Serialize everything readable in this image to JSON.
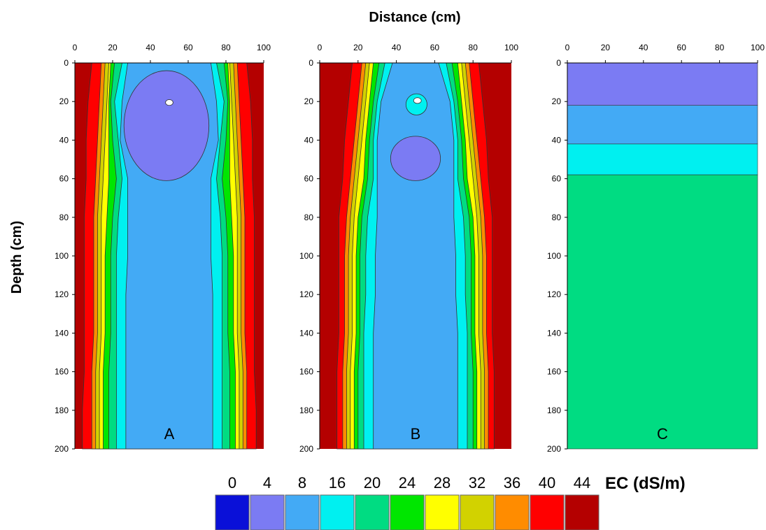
{
  "chart_data": {
    "type": "heatmap",
    "title": "",
    "xlabel": "Distance (cm)",
    "ylabel": "Depth (cm)",
    "xlim": [
      0,
      100
    ],
    "ylim": [
      0,
      200
    ],
    "x_ticks": [
      0,
      20,
      40,
      60,
      80,
      100
    ],
    "y_ticks": [
      0,
      20,
      40,
      60,
      80,
      100,
      120,
      140,
      160,
      180,
      200
    ],
    "x_tick_labels": [
      "0",
      "20",
      "40",
      "60",
      "80",
      "100"
    ],
    "y_tick_labels": [
      "0",
      "20",
      "40",
      "60",
      "80",
      "100",
      "120",
      "140",
      "160",
      "180",
      "200"
    ],
    "legend": {
      "title": "EC (dS/m)",
      "placement": "bottom",
      "levels": [
        "0",
        "4",
        "8",
        "16",
        "20",
        "24",
        "28",
        "32",
        "36",
        "40",
        "44"
      ],
      "colors": [
        "#0a10d8",
        "#7b7bf3",
        "#43aaf5",
        "#00f0f0",
        "#00dc82",
        "#00e600",
        "#ffff00",
        "#d2d200",
        "#ff8c00",
        "#ff0000",
        "#b40000"
      ]
    },
    "panels": [
      {
        "label": "A",
        "bands": [
          {
            "ec": 44,
            "half_width": [
              50,
              50,
              50,
              50,
              50,
              50,
              50,
              50,
              50,
              50,
              50
            ]
          },
          {
            "ec": 40,
            "half_width": [
              41,
              43,
              44,
              44,
              45,
              45,
              45,
              45,
              45,
              46,
              46
            ]
          },
          {
            "ec": 36,
            "half_width": [
              36,
              37,
              38,
              39,
              40,
              40,
              40,
              40,
              41,
              41,
              41
            ]
          },
          {
            "ec": 32,
            "half_width": [
              34,
              35,
              36,
              37,
              38,
              38,
              38,
              38,
              39,
              39,
              39
            ]
          },
          {
            "ec": 28,
            "half_width": [
              32,
              33,
              34,
              35,
              36,
              36,
              36,
              36,
              37,
              37,
              37
            ]
          },
          {
            "ec": 24,
            "half_width": [
              31,
              32,
              32,
              32,
              33,
              34,
              34,
              34,
              35,
              35,
              35
            ]
          },
          {
            "ec": 20,
            "half_width": [
              29,
              31,
              30,
              28,
              30,
              31,
              31,
              31,
              32,
              32,
              32
            ]
          },
          {
            "ec": 16,
            "half_width": [
              25,
              29,
              27,
              25,
              27,
              28,
              28,
              28,
              28,
              28,
              28
            ]
          },
          {
            "ec": 8,
            "half_width": [
              22,
              25,
              26,
              22,
              22,
              22,
              23,
              23,
              23,
              23,
              23
            ]
          }
        ],
        "zones": [
          {
            "ec": 4,
            "depth_top": 4,
            "depth_bottom": 61,
            "x_left": 26,
            "x_right": 71
          },
          {
            "ec": 0,
            "depth_top": 19,
            "depth_bottom": 22,
            "x_left": 48,
            "x_right": 52
          }
        ]
      },
      {
        "label": "B",
        "bands": [
          {
            "ec": 44,
            "half_width": [
              50,
              50,
              50,
              50,
              50,
              50,
              50,
              50,
              50,
              50,
              50
            ]
          },
          {
            "ec": 40,
            "half_width": [
              33,
              35,
              37,
              38,
              40,
              40,
              40,
              40,
              41,
              41,
              41
            ]
          },
          {
            "ec": 36,
            "half_width": [
              28,
              30,
              32,
              34,
              36,
              37,
              37,
              37,
              38,
              38,
              38
            ]
          },
          {
            "ec": 32,
            "half_width": [
              26,
              28,
              30,
              32,
              34,
              35,
              35,
              35,
              36,
              36,
              36
            ]
          },
          {
            "ec": 28,
            "half_width": [
              24,
              26,
              28,
              30,
              32,
              33,
              33,
              33,
              34,
              34,
              34
            ]
          },
          {
            "ec": 24,
            "half_width": [
              22,
              24,
              26,
              27,
              30,
              31,
              31,
              31,
              32,
              32,
              32
            ]
          },
          {
            "ec": 20,
            "half_width": [
              19,
              22,
              24,
              25,
              28,
              29,
              29,
              29,
              30,
              30,
              30
            ]
          },
          {
            "ec": 16,
            "half_width": [
              16,
              20,
              22,
              22,
              25,
              26,
              26,
              27,
              27,
              27,
              27
            ]
          },
          {
            "ec": 8,
            "half_width": [
              12,
              18,
              20,
              20,
              20,
              21,
              21,
              22,
              22,
              22,
              22
            ]
          }
        ],
        "zones": [
          {
            "ec": 16,
            "depth_top": 16,
            "depth_bottom": 27,
            "x_left": 45,
            "x_right": 56
          },
          {
            "ec": 4,
            "depth_top": 38,
            "depth_bottom": 61,
            "x_left": 37,
            "x_right": 63
          },
          {
            "ec": 0,
            "depth_top": 18,
            "depth_bottom": 21,
            "x_left": 49,
            "x_right": 53
          }
        ]
      },
      {
        "label": "C",
        "layers": [
          {
            "ec": 4,
            "depth_top": 0,
            "depth_bottom": 22
          },
          {
            "ec": 8,
            "depth_top": 22,
            "depth_bottom": 42
          },
          {
            "ec": 16,
            "depth_top": 42,
            "depth_bottom": 58
          },
          {
            "ec": 20,
            "depth_top": 58,
            "depth_bottom": 200
          }
        ]
      }
    ]
  }
}
